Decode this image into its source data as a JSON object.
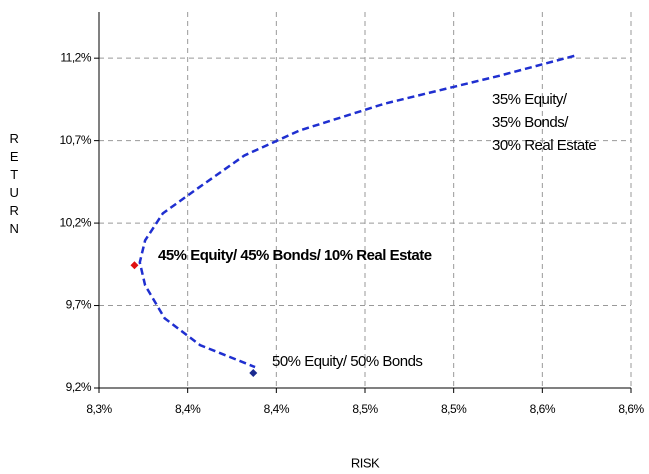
{
  "chart_data": {
    "type": "line",
    "x_label": "RISK",
    "y_label": "RETURN",
    "x": [
      8.568,
      8.526,
      8.461,
      8.413,
      8.382,
      8.354,
      8.336,
      8.326,
      8.323,
      8.326,
      8.337,
      8.357,
      8.388
    ],
    "values": [
      11.214,
      11.094,
      10.924,
      10.761,
      10.61,
      10.398,
      10.259,
      10.095,
      9.962,
      9.823,
      9.623,
      9.46,
      9.327
    ],
    "color": "#1f2fd0",
    "markers": [
      {
        "x": 8.32,
        "y": 9.944,
        "color": "#e01010"
      },
      {
        "x": 8.387,
        "y": 9.291,
        "color": "#1a2a90"
      }
    ],
    "annotations": [
      {
        "lines": [
          "35% Equity/",
          "35% Bonds/",
          "30% Real Estate"
        ],
        "bold": false
      },
      {
        "lines": [
          "45% Equity/ 45% Bonds/ 10% Real Estate"
        ],
        "bold": true
      },
      {
        "lines": [
          "50% Equity/ 50% Bonds"
        ],
        "bold": false
      }
    ],
    "xlim": [
      8.3,
      8.6
    ],
    "xticks": [
      {
        "value": 8.3,
        "label": "8,3%"
      },
      {
        "value": 8.35,
        "label": "8,4%"
      },
      {
        "value": 8.4,
        "label": "8,4%"
      },
      {
        "value": 8.45,
        "label": "8,5%"
      },
      {
        "value": 8.5,
        "label": "8,5%"
      },
      {
        "value": 8.55,
        "label": "8,6%"
      },
      {
        "value": 8.6,
        "label": "8,6%"
      }
    ],
    "ylim": [
      9.2,
      11.48
    ],
    "yticks": [
      {
        "value": 9.2,
        "label": "9,2%"
      },
      {
        "value": 9.7,
        "label": "9,7%"
      },
      {
        "value": 10.2,
        "label": "10,2%"
      },
      {
        "value": 10.7,
        "label": "10,7%"
      },
      {
        "value": 11.2,
        "label": "11,2%"
      }
    ],
    "grid": true
  }
}
